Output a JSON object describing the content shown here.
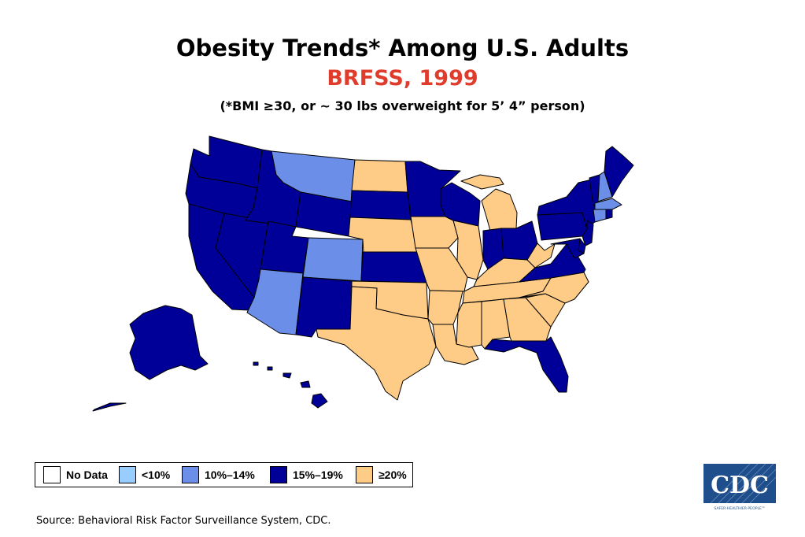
{
  "header": {
    "title": "Obesity Trends* Among U.S. Adults",
    "subtitle": "BRFSS, 1999",
    "note": "(*BMI ≥30, or ~ 30 lbs overweight for 5’ 4” person)"
  },
  "colors": {
    "no_data": "#ffffff",
    "lt10": "#99ccff",
    "p10_14": "#6b8fe8",
    "p15_19": "#000099",
    "ge20": "#ffcc88",
    "title_red": "#e03c2c",
    "cdc_blue": "#1f4e8c"
  },
  "legend": [
    {
      "label": "No Data",
      "category": "no_data"
    },
    {
      "label": "<10%",
      "category": "lt10"
    },
    {
      "label": "10%–14%",
      "category": "p10_14"
    },
    {
      "label": "15%–19%",
      "category": "p15_19"
    },
    {
      "label": "≥20%",
      "category": "ge20"
    }
  ],
  "map_data": {
    "states": {
      "WA": "p15_19",
      "OR": "p15_19",
      "CA": "p15_19",
      "NV": "p15_19",
      "ID": "p15_19",
      "MT": "p10_14",
      "WY": "p15_19",
      "UT": "p15_19",
      "AZ": "p10_14",
      "CO": "p10_14",
      "NM": "p15_19",
      "ND": "ge20",
      "SD": "p15_19",
      "NE": "ge20",
      "KS": "p15_19",
      "OK": "ge20",
      "TX": "ge20",
      "MN": "p15_19",
      "IA": "ge20",
      "MO": "ge20",
      "AR": "ge20",
      "LA": "ge20",
      "WI": "p15_19",
      "IL": "ge20",
      "MI": "ge20",
      "IN": "p15_19",
      "OH": "p15_19",
      "KY": "ge20",
      "TN": "ge20",
      "MS": "ge20",
      "AL": "ge20",
      "GA": "ge20",
      "FL": "p15_19",
      "SC": "ge20",
      "NC": "ge20",
      "VA": "p15_19",
      "WV": "ge20",
      "PA": "p15_19",
      "NY": "p15_19",
      "VT": "p15_19",
      "NH": "p10_14",
      "ME": "p15_19",
      "MA": "p10_14",
      "CT": "p10_14",
      "RI": "p15_19",
      "NJ": "p15_19",
      "DE": "p15_19",
      "MD": "p15_19",
      "AK": "p15_19",
      "HI": "p15_19"
    }
  },
  "source": "Source: Behavioral Risk Factor Surveillance System, CDC.",
  "logo": {
    "text": "CDC",
    "tagline": "SAFER·HEALTHIER·PEOPLE™"
  }
}
